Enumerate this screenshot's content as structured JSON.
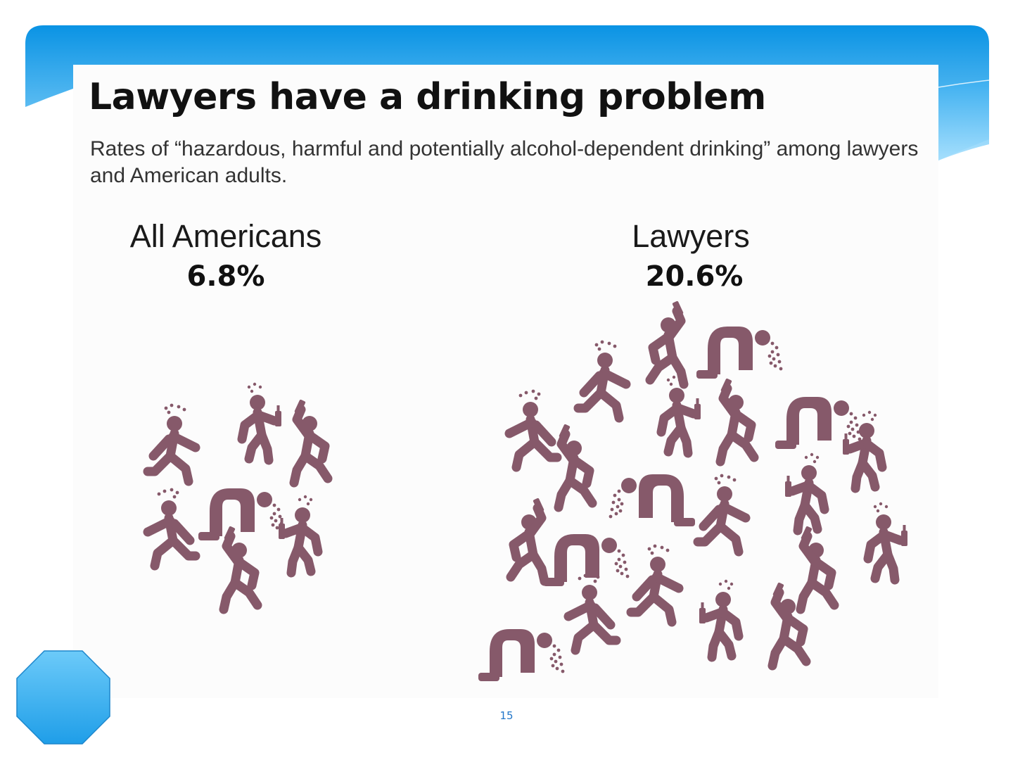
{
  "slide": {
    "title": "Lawyers have a drinking problem",
    "subtitle": "Rates of “hazardous, harmful and potentially alcohol-dependent drinking” among lawyers and American adults.",
    "slide_number": "15"
  },
  "colors": {
    "figure": "#86596a",
    "banner_top": "#0a93e4",
    "banner_bottom": "#7fd0fb",
    "octagon": "#3bb0f3"
  },
  "chart_data": {
    "type": "pictograph",
    "icon": "drunk-person-icon",
    "groups": [
      {
        "label": "All Americans",
        "value_label": "6.8%",
        "value": 6.8,
        "icon_count": 7
      },
      {
        "label": "Lawyers",
        "value_label": "20.6%",
        "value": 20.6,
        "icon_count": 21
      }
    ]
  }
}
